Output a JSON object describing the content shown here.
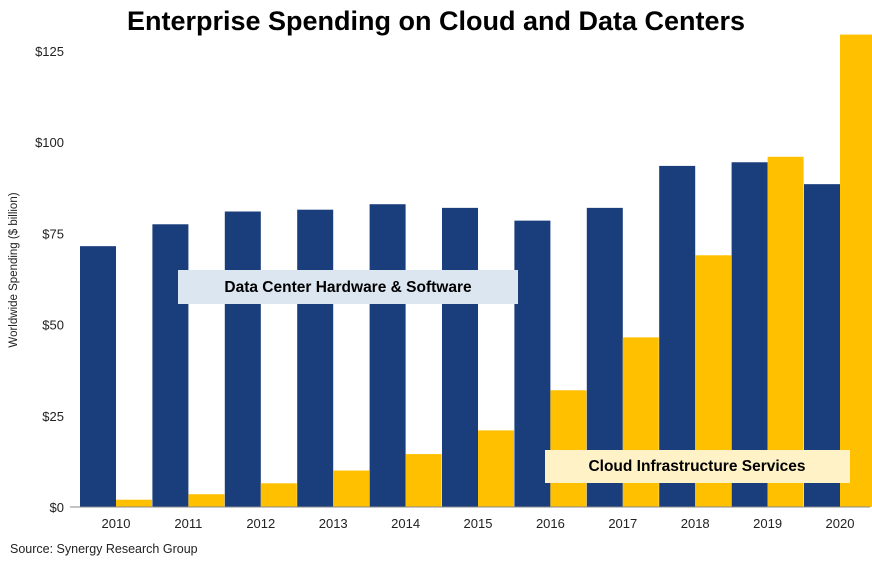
{
  "chart_data": {
    "type": "bar",
    "title": "Enterprise Spending on Cloud and Data Centers",
    "ylabel": "Worldwide Spending ($ billion)",
    "xlabel": "",
    "categories": [
      "2010",
      "2011",
      "2012",
      "2013",
      "2014",
      "2015",
      "2016",
      "2017",
      "2018",
      "2019",
      "2020"
    ],
    "series": [
      {
        "name": "Data Center Hardware & Software",
        "color": "#1a3d7c",
        "values": [
          71.5,
          77.5,
          81,
          81.5,
          83,
          82,
          78.5,
          82,
          93.5,
          94.5,
          88.5
        ]
      },
      {
        "name": "Cloud Infrastructure Services",
        "color": "#ffc000",
        "values": [
          2,
          3.5,
          6.5,
          10,
          14.5,
          21,
          32,
          46.5,
          69,
          96,
          129.5
        ]
      }
    ],
    "ylim": [
      0,
      125
    ],
    "yticks": [
      "$0",
      "$25",
      "$50",
      "$75",
      "$100",
      "$125"
    ],
    "ytick_values": [
      0,
      25,
      50,
      75,
      100,
      125
    ],
    "grid": false,
    "source": "Source: Synergy Research Group"
  }
}
